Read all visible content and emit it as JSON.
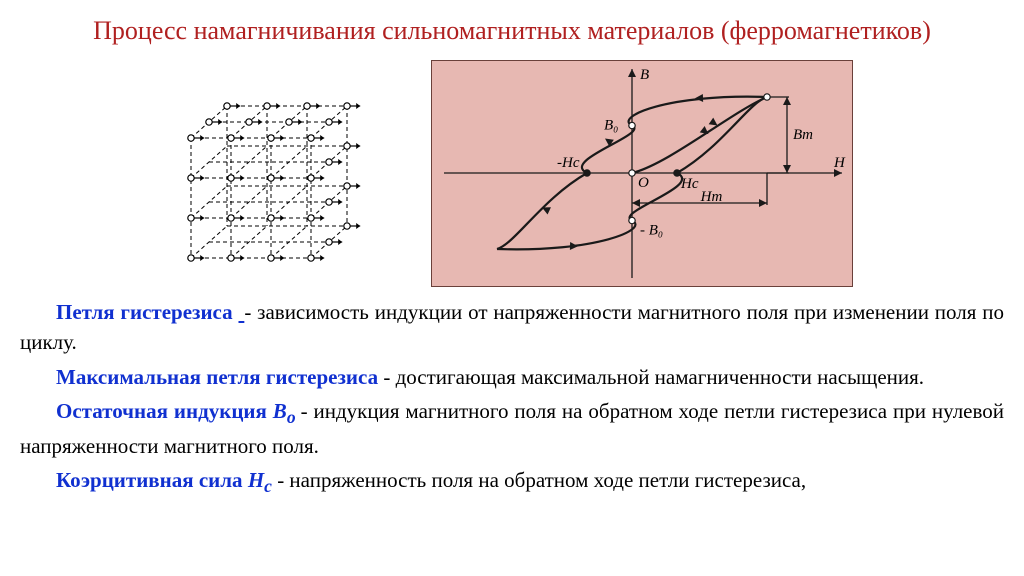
{
  "title": "Процесс намагничивания сильномагнитных материалов (ферромагнетиков)",
  "cube": {
    "stroke": "#000000",
    "dash": "4 3",
    "bg": "#ffffff",
    "node_r": 3.2,
    "arrow_len": 10
  },
  "hysteresis": {
    "bg": "#e7b8b2",
    "border": "#6a403a",
    "stroke": "#1a1a1a",
    "fill_ax": "#1a1a1a",
    "labels": {
      "B": "B",
      "H": "H",
      "B0": "B₀",
      "mB0": "- B₀",
      "Hc": "Hc",
      "mHc": "-Hc",
      "Hm": "Hm",
      "Bm": "Bm",
      "O": "O"
    },
    "xlim": [
      -200,
      200
    ],
    "ylim": [
      -110,
      110
    ],
    "Hm": 150,
    "Hc": 50,
    "B0": 55,
    "Bm": 88
  },
  "defs": {
    "p1_term": "Петля гистерезиса ",
    "p1_rest": "- зависимость индукции от напряженности магнитного поля при изменении поля по циклу.",
    "p2_term": "Максимальная петля гистерезиса",
    "p2_rest": " - достигающая максимальной намагниченности насыщения.",
    "p3_term": "Остаточная индукция ",
    "p3_sym": "B",
    "p3_sub": "o ",
    "p3_rest": "- индукция магнитного поля на обратном ходе петли гистерезиса при нулевой напряженности магнитного поля.",
    "p4_term": "Коэрцитивная сила ",
    "p4_sym": "H",
    "p4_sub": "c",
    "p4_rest": " - напряженность поля на обратном ходе петли гистерезиса,"
  },
  "colors": {
    "title": "#b02020",
    "term": "#1030d0",
    "text": "#000000",
    "bg": "#ffffff"
  },
  "fonts": {
    "body_size": 21,
    "title_size": 26
  }
}
